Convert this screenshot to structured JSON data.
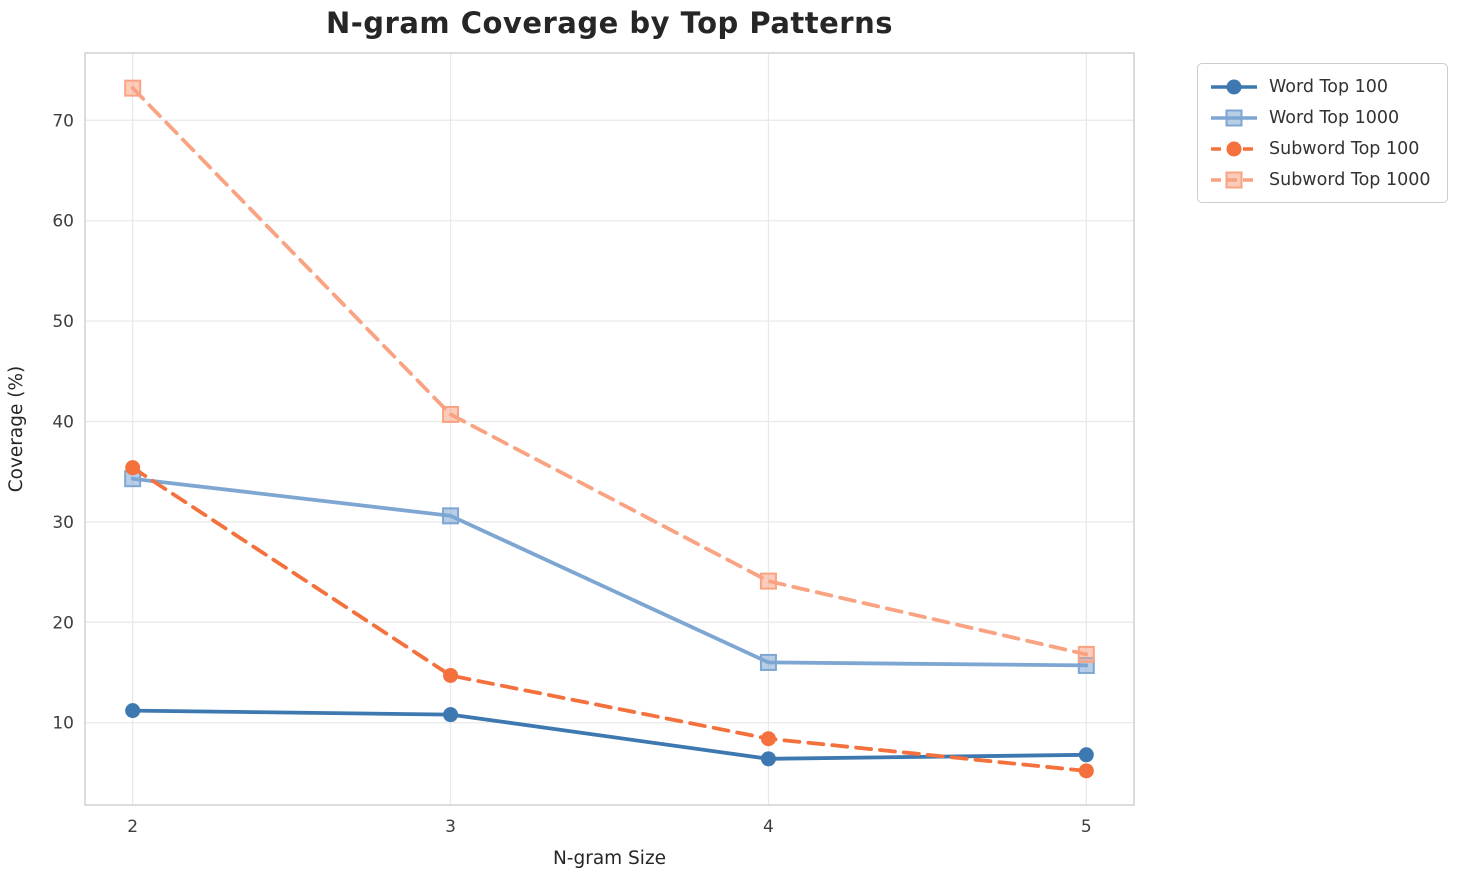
{
  "chart_data": {
    "type": "line",
    "title": "N-gram Coverage by Top Patterns",
    "xlabel": "N-gram Size",
    "ylabel": "Coverage (%)",
    "x": [
      2,
      3,
      4,
      5
    ],
    "x_tick_labels": [
      "2",
      "3",
      "4",
      "5"
    ],
    "y_ticks": [
      10,
      20,
      30,
      40,
      50,
      60,
      70
    ],
    "y_tick_labels": [
      "10",
      "20",
      "30",
      "40",
      "50",
      "60",
      "70"
    ],
    "xlim": [
      1.85,
      5.15
    ],
    "ylim": [
      1.8,
      76.7
    ],
    "grid": true,
    "legend_position": "outside-top-right",
    "colors": {
      "grid": "#e8e8e8",
      "spine": "#d0d0d0",
      "title_text": "#262626",
      "tick_text": "#3d3d3d"
    },
    "series": [
      {
        "name": "Word Top 100",
        "values": [
          11.2,
          10.8,
          6.4,
          6.8
        ],
        "color": "#3d78b0",
        "marker": "circle",
        "linestyle": "solid"
      },
      {
        "name": "Word Top 1000",
        "values": [
          34.3,
          30.6,
          16.0,
          15.7
        ],
        "color": "#7ea6d2",
        "marker": "square",
        "linestyle": "solid"
      },
      {
        "name": "Subword Top 100",
        "values": [
          35.4,
          14.7,
          8.4,
          5.2
        ],
        "color": "#f4703c",
        "marker": "circle",
        "linestyle": "dashed"
      },
      {
        "name": "Subword Top 1000",
        "values": [
          73.2,
          40.7,
          24.1,
          16.8
        ],
        "color": "#f9a383",
        "marker": "square",
        "linestyle": "dashed"
      }
    ]
  }
}
